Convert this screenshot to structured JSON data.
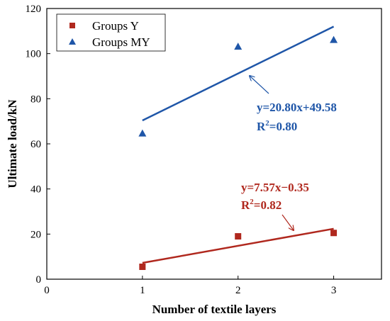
{
  "chart_data": {
    "type": "scatter",
    "xlabel": "Number of textile layers",
    "ylabel": "Ultimate load/kN",
    "xlim": [
      0,
      3.5
    ],
    "ylim": [
      0,
      120
    ],
    "x_ticks": [
      0,
      1,
      2,
      3
    ],
    "y_ticks": [
      0,
      20,
      40,
      60,
      80,
      100,
      120
    ],
    "legend_position": "top-left",
    "grid": false,
    "series": [
      {
        "name": "Groups Y",
        "marker": "square",
        "color": "#b0281e",
        "x": [
          1,
          2,
          3
        ],
        "y": [
          5.5,
          19.0,
          20.5
        ],
        "fit": {
          "slope": 7.57,
          "intercept": -0.35,
          "x_range": [
            1,
            3
          ]
        },
        "annotation": {
          "equation": "y=7.57x−0.35",
          "r2_label": "R",
          "r2_sup": "2",
          "r2_value": "=0.82"
        }
      },
      {
        "name": "Groups MY",
        "marker": "triangle",
        "color": "#1f56a8",
        "x": [
          1,
          2,
          3
        ],
        "y": [
          64.5,
          103.0,
          106.0
        ],
        "fit": {
          "slope": 20.8,
          "intercept": 49.58,
          "x_range": [
            1,
            3
          ]
        },
        "annotation": {
          "equation": "y=20.80x+49.58",
          "r2_label": "R",
          "r2_sup": "2",
          "r2_value": "=0.80"
        }
      }
    ]
  }
}
